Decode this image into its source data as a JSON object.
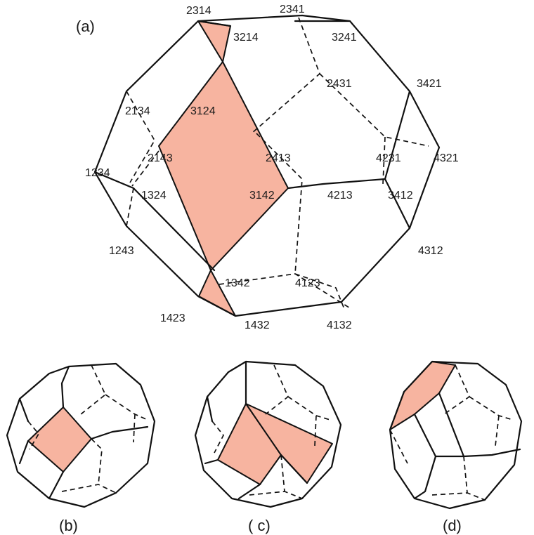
{
  "panels": {
    "a": "(a)",
    "b": "(b)",
    "c": "( c)",
    "d": "(d)"
  },
  "vertex_labels": [
    "2314",
    "2341",
    "3214",
    "3241",
    "2431",
    "3421",
    "2134",
    "3124",
    "2143",
    "2413",
    "4231",
    "4321",
    "1234",
    "1324",
    "3142",
    "4213",
    "3412",
    "1243",
    "4312",
    "1342",
    "4123",
    "1423",
    "1432",
    "4132"
  ],
  "colors": {
    "face_fill": "#f7b4a0",
    "edge": "#111111"
  }
}
